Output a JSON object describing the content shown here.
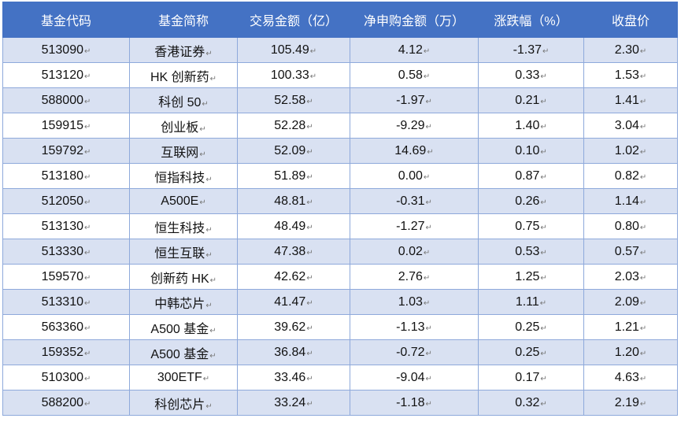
{
  "table": {
    "headers": [
      "基金代码",
      "基金简称",
      "交易金额（亿）",
      "净申购金额（万）",
      "涨跌幅（%）",
      "收盘价"
    ],
    "rows": [
      [
        "513090",
        "香港证券",
        "105.49",
        "4.12",
        "-1.37",
        "2.30"
      ],
      [
        "513120",
        "HK 创新药",
        "100.33",
        "0.58",
        "0.33",
        "1.53"
      ],
      [
        "588000",
        "科创 50",
        "52.58",
        "-1.97",
        "0.21",
        "1.41"
      ],
      [
        "159915",
        "创业板",
        "52.28",
        "-9.29",
        "1.40",
        "3.04"
      ],
      [
        "159792",
        "互联网",
        "52.09",
        "14.69",
        "0.10",
        "1.02"
      ],
      [
        "513180",
        "恒指科技",
        "51.89",
        "0.00",
        "0.87",
        "0.82"
      ],
      [
        "512050",
        "A500E",
        "48.81",
        "-0.31",
        "0.26",
        "1.14"
      ],
      [
        "513130",
        "恒生科技",
        "48.49",
        "-1.27",
        "0.75",
        "0.80"
      ],
      [
        "513330",
        "恒生互联",
        "47.38",
        "0.02",
        "0.53",
        "0.57"
      ],
      [
        "159570",
        "创新药 HK",
        "42.62",
        "2.76",
        "1.25",
        "2.03"
      ],
      [
        "513310",
        "中韩芯片",
        "41.47",
        "1.03",
        "1.11",
        "2.09"
      ],
      [
        "563360",
        "A500 基金",
        "39.62",
        "-1.13",
        "0.25",
        "1.21"
      ],
      [
        "159352",
        "A500 基金",
        "36.84",
        "-0.72",
        "0.25",
        "1.20"
      ],
      [
        "510300",
        "300ETF",
        "33.46",
        "-9.04",
        "0.17",
        "4.63"
      ],
      [
        "588200",
        "科创芯片",
        "33.24",
        "-1.18",
        "0.32",
        "2.19"
      ]
    ]
  },
  "colors": {
    "header_bg": "#4472c4",
    "header_text": "#ffffff",
    "band_row": "#d9e1f2",
    "plain_row": "#ffffff",
    "border": "#8ea9db"
  }
}
